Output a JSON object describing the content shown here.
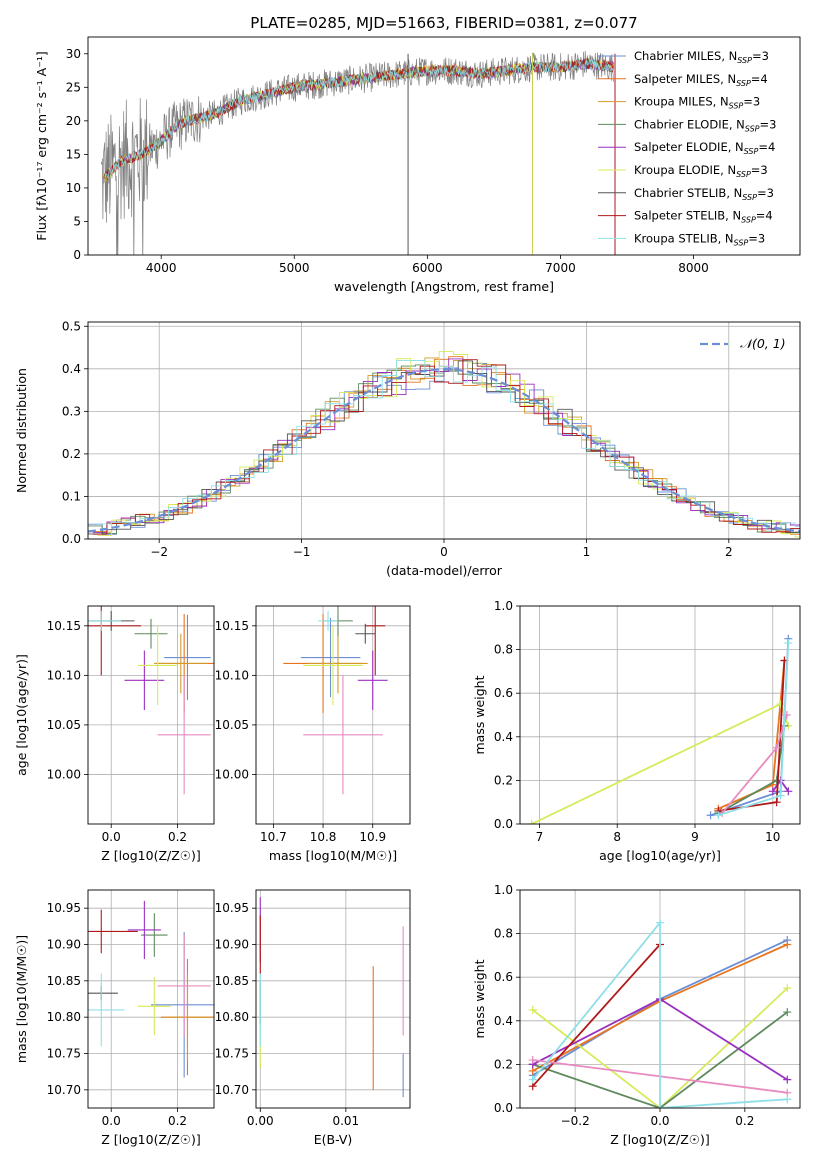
{
  "title": "PLATE=0285, MJD=51663, FIBERID=0381, z=0.077",
  "series": [
    {
      "name": "Chabrier MILES, N_SSP=3",
      "label": "Chabrier MILES, N",
      "n": "3",
      "color": "#6a8fd6"
    },
    {
      "name": "Salpeter MILES, N_SSP=4",
      "label": "Salpeter MILES, N",
      "n": "4",
      "color": "#e8741e"
    },
    {
      "name": "Kroupa MILES, N_SSP=3",
      "label": "Kroupa MILES, N",
      "n": "3",
      "color": "#d49a2c"
    },
    {
      "name": "Chabrier ELODIE, N_SSP=3",
      "label": "Chabrier ELODIE, N",
      "n": "3",
      "color": "#5e8a5e"
    },
    {
      "name": "Salpeter ELODIE, N_SSP=4",
      "label": "Salpeter ELODIE, N",
      "n": "4",
      "color": "#9b30c0"
    },
    {
      "name": "Kroupa ELODIE, N_SSP=3",
      "label": "Kroupa ELODIE, N",
      "n": "3",
      "color": "#d8ea5a"
    },
    {
      "name": "Chabrier STELIB, N_SSP=3",
      "label": "Chabrier STELIB, N",
      "n": "3",
      "color": "#555555"
    },
    {
      "name": "Salpeter STELIB, N_SSP=4",
      "label": "Salpeter STELIB, N",
      "n": "4",
      "color": "#b01818"
    },
    {
      "name": "Kroupa STELIB, N_SSP=3",
      "label": "Kroupa STELIB, N",
      "n": "3",
      "color": "#8ee0e8"
    }
  ],
  "legend_sub": "SSP",
  "chart_data": [
    {
      "id": "spectrum",
      "type": "line",
      "xlabel": "wavelength [Angstrom, rest frame]",
      "ylabel": "Flux [fλ10⁻¹⁷ erg cm⁻² s⁻¹ A⁻¹]",
      "xlim": [
        3450,
        8800
      ],
      "ylim": [
        0,
        32.5
      ],
      "xticks": [
        4000,
        5000,
        6000,
        7000,
        8000
      ],
      "yticks": [
        0,
        5,
        10,
        15,
        20,
        25,
        30
      ],
      "data_envelope": {
        "x": [
          3550,
          3700,
          3850,
          4000,
          4100,
          4200,
          4400,
          4600,
          4800,
          5000,
          5200,
          5400,
          5600,
          5800,
          6000,
          6200,
          6400,
          6600,
          6800,
          7000,
          7200,
          7400
        ],
        "y": [
          11,
          14,
          15,
          17,
          19,
          20,
          21,
          23,
          24,
          25,
          25.5,
          26,
          26.5,
          27,
          27.5,
          27.5,
          27,
          27.5,
          28,
          28,
          28.5,
          28
        ]
      }
    },
    {
      "id": "residuals",
      "type": "line",
      "xlabel": "(data-model)/error",
      "ylabel": "Normed distribution",
      "xlim": [
        -2.5,
        2.5
      ],
      "ylim": [
        0,
        0.51
      ],
      "xticks": [
        -2,
        -1,
        0,
        1,
        2
      ],
      "yticks": [
        0.0,
        0.1,
        0.2,
        0.3,
        0.4,
        0.5
      ],
      "reference": {
        "name": "N(0,1)",
        "label": "𝒩(0, 1)",
        "mu": 0,
        "sigma": 1,
        "color": "#6a8fd6"
      }
    },
    {
      "id": "age-vs-Z",
      "type": "scatter",
      "xlabel": "Z [log10(Z/Z☉)]",
      "ylabel": "age [log10(age/yr)]",
      "xlim": [
        -0.07,
        0.31
      ],
      "ylim": [
        9.95,
        10.17
      ],
      "xticks": [
        0.0,
        0.2
      ],
      "yticks": [
        10.0,
        10.05,
        10.1,
        10.15
      ],
      "points": [
        {
          "x": 0.23,
          "y": 10.118,
          "xerr": 0.07,
          "yerr": 0.043,
          "c": 0
        },
        {
          "x": 0.22,
          "y": 10.112,
          "xerr": 0.09,
          "yerr": 0.05,
          "c": 1
        },
        {
          "x": 0.21,
          "y": 10.112,
          "xerr": 0.08,
          "yerr": 0.03,
          "c": 2
        },
        {
          "x": 0.12,
          "y": 10.142,
          "xerr": 0.05,
          "yerr": 0.015,
          "c": 3
        },
        {
          "x": 0.1,
          "y": 10.095,
          "xerr": 0.06,
          "yerr": 0.03,
          "c": 4
        },
        {
          "x": 0.14,
          "y": 10.11,
          "xerr": 0.06,
          "yerr": 0.04,
          "c": 5
        },
        {
          "x": 0.0,
          "y": 10.155,
          "xerr": 0.07,
          "yerr": 0.01,
          "c": 6
        },
        {
          "x": -0.03,
          "y": 10.15,
          "xerr": 0.12,
          "yerr": 0.05,
          "c": 7
        },
        {
          "x": -0.03,
          "y": 10.155,
          "xerr": 0.06,
          "yerr": 0.01,
          "c": 8
        },
        {
          "x": 0.22,
          "y": 10.04,
          "xerr": 0.08,
          "yerr": 0.06,
          "c": 0,
          "override": "#e98ac0"
        }
      ]
    },
    {
      "id": "age-vs-mass",
      "type": "scatter",
      "xlabel": "mass [log10(M/M☉)]",
      "ylabel": "",
      "xlim": [
        10.665,
        10.975
      ],
      "ylim": [
        9.95,
        10.17
      ],
      "xticks": [
        10.7,
        10.8,
        10.9
      ],
      "yticks": [
        10.0,
        10.05,
        10.1,
        10.15
      ],
      "points": [
        {
          "x": 10.815,
          "y": 10.118,
          "xerr": 0.06,
          "yerr": 0.04,
          "c": 0
        },
        {
          "x": 10.8,
          "y": 10.112,
          "xerr": 0.08,
          "yerr": 0.05,
          "c": 1
        },
        {
          "x": 10.83,
          "y": 10.112,
          "xerr": 0.06,
          "yerr": 0.03,
          "c": 2
        },
        {
          "x": 10.83,
          "y": 10.155,
          "xerr": 0.03,
          "yerr": 0.015,
          "c": 3
        },
        {
          "x": 10.9,
          "y": 10.095,
          "xerr": 0.03,
          "yerr": 0.03,
          "c": 4
        },
        {
          "x": 10.82,
          "y": 10.11,
          "xerr": 0.06,
          "yerr": 0.04,
          "c": 5
        },
        {
          "x": 10.885,
          "y": 10.142,
          "xerr": 0.02,
          "yerr": 0.01,
          "c": 6
        },
        {
          "x": 10.905,
          "y": 10.15,
          "xerr": 0.02,
          "yerr": 0.05,
          "c": 7
        },
        {
          "x": 10.81,
          "y": 10.155,
          "xerr": 0.02,
          "yerr": 0.01,
          "c": 8
        },
        {
          "x": 10.84,
          "y": 10.04,
          "xerr": 0.08,
          "yerr": 0.06,
          "c": 0,
          "override": "#e98ac0"
        }
      ]
    },
    {
      "id": "massweight-vs-age",
      "type": "line",
      "xlabel": "age [log10(age/yr)]",
      "ylabel": "mass weight",
      "xlim": [
        6.75,
        10.35
      ],
      "ylim": [
        0,
        1.0
      ],
      "xticks": [
        7,
        8,
        9,
        10
      ],
      "yticks": [
        0.0,
        0.2,
        0.4,
        0.6,
        0.8,
        1.0
      ],
      "lines": [
        {
          "x": [
            9.2,
            10.1,
            10.2
          ],
          "y": [
            0.04,
            0.15,
            0.85
          ],
          "c": 0
        },
        {
          "x": [
            9.3,
            10.0,
            10.15
          ],
          "y": [
            0.07,
            0.18,
            0.75
          ],
          "c": 1
        },
        {
          "x": [
            6.9,
            10.1,
            10.2
          ],
          "y": [
            0.0,
            0.55,
            0.45
          ],
          "c": 5
        },
        {
          "x": [
            9.3,
            10.05,
            10.15
          ],
          "y": [
            0.05,
            0.2,
            0.45
          ],
          "c": 3
        },
        {
          "x": [
            10.0,
            10.1,
            10.2
          ],
          "y": [
            0.15,
            0.2,
            0.15
          ],
          "c": 4
        },
        {
          "x": [
            9.3,
            10.05,
            10.15
          ],
          "y": [
            0.06,
            0.1,
            0.75
          ],
          "c": 7
        },
        {
          "x": [
            9.35,
            10.05,
            10.18
          ],
          "y": [
            0.05,
            0.35,
            0.5
          ],
          "c": 0,
          "override": "#e98ac0"
        },
        {
          "x": [
            9.3,
            10.1,
            10.2
          ],
          "y": [
            0.04,
            0.13,
            0.83
          ],
          "c": 8
        }
      ]
    },
    {
      "id": "mass-vs-Z",
      "type": "scatter",
      "xlabel": "Z [log10(Z/Z☉)]",
      "ylabel": "mass [log10(M/M☉)]",
      "xlim": [
        -0.07,
        0.31
      ],
      "ylim": [
        10.675,
        10.975
      ],
      "xticks": [
        0.0,
        0.2
      ],
      "yticks": [
        10.7,
        10.75,
        10.8,
        10.85,
        10.9,
        10.95
      ],
      "points": [
        {
          "x": 0.22,
          "y": 10.817,
          "xerr": 0.1,
          "yerr": 0.1,
          "c": 0
        },
        {
          "x": 0.23,
          "y": 10.8,
          "xerr": 0.08,
          "yerr": 0.08,
          "c": 1
        },
        {
          "x": 0.23,
          "y": 10.8,
          "xerr": 0.07,
          "yerr": 0.06,
          "c": 2
        },
        {
          "x": 0.13,
          "y": 10.913,
          "xerr": 0.04,
          "yerr": 0.03,
          "c": 3
        },
        {
          "x": 0.1,
          "y": 10.92,
          "xerr": 0.05,
          "yerr": 0.04,
          "c": 4
        },
        {
          "x": 0.13,
          "y": 10.815,
          "xerr": 0.05,
          "yerr": 0.04,
          "c": 5
        },
        {
          "x": -0.03,
          "y": 10.833,
          "xerr": 0.05,
          "yerr": 0.01,
          "c": 6
        },
        {
          "x": -0.03,
          "y": 10.918,
          "xerr": 0.11,
          "yerr": 0.03,
          "c": 7
        },
        {
          "x": -0.03,
          "y": 10.81,
          "xerr": 0.07,
          "yerr": 0.05,
          "c": 8
        },
        {
          "x": 0.22,
          "y": 10.843,
          "xerr": 0.08,
          "yerr": 0.07,
          "c": 0,
          "override": "#e98ac0"
        }
      ]
    },
    {
      "id": "mass-vs-EBV",
      "type": "scatter",
      "xlabel": "E(B-V)",
      "ylabel": "",
      "xlim": [
        -0.0005,
        0.0175
      ],
      "ylim": [
        10.675,
        10.975
      ],
      "xticks": [
        0.0,
        0.01
      ],
      "yticks": [
        10.7,
        10.75,
        10.8,
        10.85,
        10.9,
        10.95
      ],
      "points": [
        {
          "x": 0.0167,
          "y": 10.72,
          "xerr": 0,
          "yerr": 0.03,
          "c": 0
        },
        {
          "x": 0.0132,
          "y": 10.785,
          "xerr": 0,
          "yerr": 0.085,
          "c": 1
        },
        {
          "x": 0.0167,
          "y": 10.85,
          "xerr": 0,
          "yerr": 0.075,
          "c": 0,
          "override": "#e98ac0"
        },
        {
          "x": 0.0,
          "y": 10.92,
          "xerr": 0,
          "yerr": 0.045,
          "c": 4
        },
        {
          "x": 0.0,
          "y": 10.9,
          "xerr": 0,
          "yerr": 0.04,
          "c": 7
        },
        {
          "x": 0.0,
          "y": 10.82,
          "xerr": 0,
          "yerr": 0.03,
          "c": 3
        },
        {
          "x": 0.0,
          "y": 10.76,
          "xerr": 0,
          "yerr": 0.03,
          "c": 5
        },
        {
          "x": 0.0,
          "y": 10.81,
          "xerr": 0,
          "yerr": 0.05,
          "c": 8
        }
      ]
    },
    {
      "id": "massweight-vs-Z",
      "type": "line",
      "xlabel": "Z [log10(Z/Z☉)]",
      "ylabel": "mass weight",
      "xlim": [
        -0.33,
        0.33
      ],
      "ylim": [
        0,
        1.0
      ],
      "xticks": [
        -0.2,
        0.0,
        0.2
      ],
      "yticks": [
        0.0,
        0.2,
        0.4,
        0.6,
        0.8,
        1.0
      ],
      "lines": [
        {
          "x": [
            -0.3,
            0.0,
            0.3
          ],
          "y": [
            0.15,
            0.5,
            0.77
          ],
          "c": 0
        },
        {
          "x": [
            -0.3,
            0.0,
            0.3
          ],
          "y": [
            0.17,
            0.49,
            0.75
          ],
          "c": 1
        },
        {
          "x": [
            -0.3,
            0.0,
            0.3
          ],
          "y": [
            0.45,
            0.0,
            0.55
          ],
          "c": 5
        },
        {
          "x": [
            -0.3,
            0.0,
            0.3
          ],
          "y": [
            0.2,
            0.0,
            0.44
          ],
          "c": 3
        },
        {
          "x": [
            -0.3,
            0.0,
            0.3
          ],
          "y": [
            0.2,
            0.5,
            0.13
          ],
          "c": 4
        },
        {
          "x": [
            -0.3,
            0.0
          ],
          "y": [
            0.1,
            0.75
          ],
          "c": 7
        },
        {
          "x": [
            -0.3,
            0.3
          ],
          "y": [
            0.22,
            0.07
          ],
          "c": 0,
          "override": "#e98ac0"
        },
        {
          "x": [
            -0.3,
            0.0,
            0.0,
            0.3
          ],
          "y": [
            0.13,
            0.85,
            0.0,
            0.04
          ],
          "c": 8
        }
      ]
    }
  ]
}
